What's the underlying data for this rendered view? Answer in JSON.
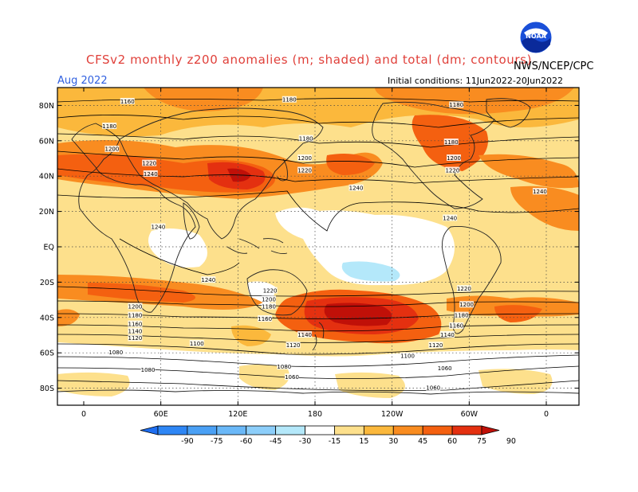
{
  "header": {
    "title": "CFSv2 monthly z200 anomalies (m; shaded) and total (dm; contours)",
    "month": "Aug 2022",
    "initial_conditions": "Initial conditions: 11Jun2022-20Jun2022",
    "org": "NWS/NCEP/CPC",
    "logo_text": "NOAA"
  },
  "map": {
    "lat_labels": [
      "80N",
      "60N",
      "40N",
      "20N",
      "EQ",
      "20S",
      "40S",
      "60S",
      "80S"
    ],
    "lon_labels": [
      "0",
      "60E",
      "120E",
      "180",
      "120W",
      "60W",
      "0"
    ],
    "contour_labels": [
      {
        "text": "1160",
        "lat": 82,
        "lon": 34
      },
      {
        "text": "1180",
        "lat": 83,
        "lon": 160
      },
      {
        "text": "1180",
        "lat": 80,
        "lon": 290
      },
      {
        "text": "1180",
        "lat": 68,
        "lon": 20
      },
      {
        "text": "1180",
        "lat": 61,
        "lon": 173
      },
      {
        "text": "1180",
        "lat": 59,
        "lon": 286
      },
      {
        "text": "1200",
        "lat": 55,
        "lon": 22
      },
      {
        "text": "1200",
        "lat": 50,
        "lon": 172
      },
      {
        "text": "1200",
        "lat": 50,
        "lon": 288
      },
      {
        "text": "1220",
        "lat": 47,
        "lon": 51
      },
      {
        "text": "1240",
        "lat": 41,
        "lon": 52
      },
      {
        "text": "1220",
        "lat": 43,
        "lon": 172
      },
      {
        "text": "1220",
        "lat": 43,
        "lon": 287
      },
      {
        "text": "1240",
        "lat": 33,
        "lon": 212
      },
      {
        "text": "1240",
        "lat": 31,
        "lon": 355
      },
      {
        "text": "1240",
        "lat": 16,
        "lon": 285
      },
      {
        "text": "1240",
        "lat": 11,
        "lon": 58
      },
      {
        "text": "1240",
        "lat": -19,
        "lon": 97
      },
      {
        "text": "1220",
        "lat": -25,
        "lon": 145
      },
      {
        "text": "1200",
        "lat": -30,
        "lon": 144
      },
      {
        "text": "1180",
        "lat": -34,
        "lon": 144
      },
      {
        "text": "1160",
        "lat": -41,
        "lon": 141
      },
      {
        "text": "1220",
        "lat": -24,
        "lon": 296
      },
      {
        "text": "1200",
        "lat": -33,
        "lon": 298
      },
      {
        "text": "1180",
        "lat": -39,
        "lon": 294
      },
      {
        "text": "1160",
        "lat": -45,
        "lon": 290
      },
      {
        "text": "1200",
        "lat": -34,
        "lon": 40
      },
      {
        "text": "1180",
        "lat": -39,
        "lon": 40
      },
      {
        "text": "1160",
        "lat": -44,
        "lon": 40
      },
      {
        "text": "1140",
        "lat": -48,
        "lon": 40
      },
      {
        "text": "1120",
        "lat": -52,
        "lon": 40
      },
      {
        "text": "1140",
        "lat": -50,
        "lon": 172
      },
      {
        "text": "1140",
        "lat": -50,
        "lon": 283
      },
      {
        "text": "1120",
        "lat": -56,
        "lon": 163
      },
      {
        "text": "1120",
        "lat": -56,
        "lon": 274
      },
      {
        "text": "1100",
        "lat": -55,
        "lon": 88
      },
      {
        "text": "1100",
        "lat": -62,
        "lon": 252
      },
      {
        "text": "1080",
        "lat": -60,
        "lon": 25
      },
      {
        "text": "1080",
        "lat": -70,
        "lon": 50
      },
      {
        "text": "1080",
        "lat": -68,
        "lon": 156
      },
      {
        "text": "1060",
        "lat": -74,
        "lon": 162
      },
      {
        "text": "1060",
        "lat": -69,
        "lon": 281
      },
      {
        "text": "1060",
        "lat": -80,
        "lon": 272
      }
    ]
  },
  "legend": {
    "tick_labels": [
      "-90",
      "-75",
      "-60",
      "-45",
      "-30",
      "-15",
      "15",
      "30",
      "45",
      "60",
      "75",
      "90"
    ],
    "colors": [
      "#1e6ef0",
      "#2e86f5",
      "#4aa0f5",
      "#6ab8f8",
      "#8ccefa",
      "#b4e8fa",
      "#ffffff",
      "#fde08c",
      "#fbb83c",
      "#f98c20",
      "#f46010",
      "#e43010",
      "#c01008"
    ]
  }
}
